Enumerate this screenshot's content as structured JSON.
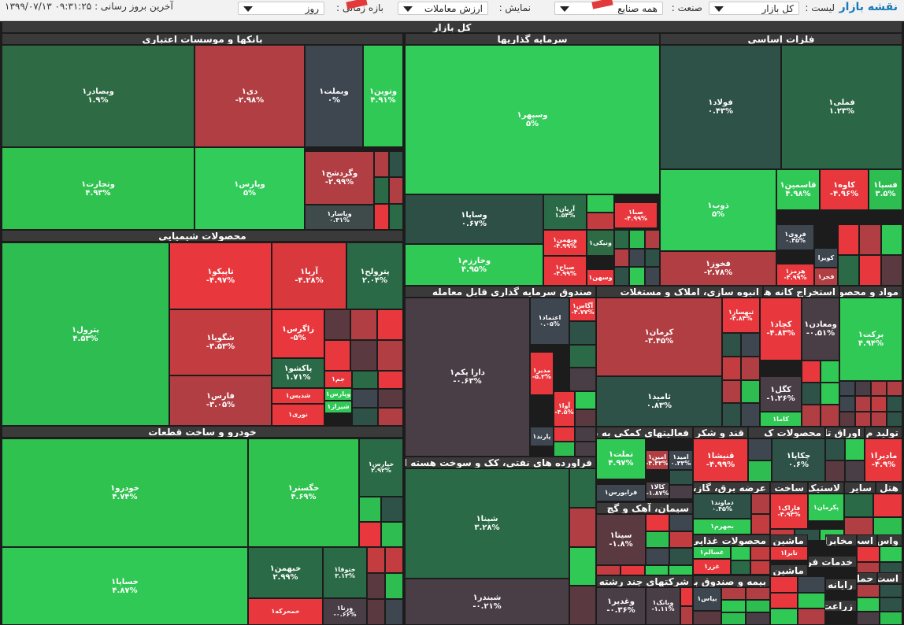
{
  "top_bar": {
    "app_title": "نقشه بازار",
    "list_label": "لیست :",
    "list_value": "کل بازار",
    "industry_label": "صنعت :",
    "industry_value": "همه صنایع",
    "show_label": "نمایش :",
    "show_value": "ارزش معاملات",
    "period_label": "بازه زمانی :",
    "period_value": "روز",
    "update_label": "آخرین بروز رسانی : ۰۹:۳۱:۲۵ ۱۳۹۹/۰۷/۱۳"
  },
  "map": {
    "root": "کل بازار",
    "sectors": [
      {
        "id": "banks",
        "name": "بانکها و موسسات اعتباری"
      },
      {
        "id": "invest",
        "name": "سرمایه گذاریها"
      },
      {
        "id": "metals",
        "name": "فلزات اساسی"
      },
      {
        "id": "chem",
        "name": "محصولات شیمیایی"
      },
      {
        "id": "fund",
        "name": "صندوق سرمایه گذاری قابل معامله"
      },
      {
        "id": "build",
        "name": "انبوه سازی، املاک و مستغلات"
      },
      {
        "id": "mining",
        "name": "استخراج کانه های"
      },
      {
        "id": "mat",
        "name": "مواد و محصو"
      },
      {
        "id": "auto",
        "name": "خودرو و ساخت قطعات"
      },
      {
        "id": "aux",
        "name": "فعالیتهای کمکی به نهاد"
      },
      {
        "id": "sugar",
        "name": "قند و شکر"
      },
      {
        "id": "prodk",
        "name": "محصولات ک"
      },
      {
        "id": "paper",
        "name": "اوراق تا"
      },
      {
        "id": "tolid",
        "name": "تولید م"
      },
      {
        "id": "oil",
        "name": "فراورده های نفتی، کک و سوخت هسته ای"
      },
      {
        "id": "utility",
        "name": "عرضه برق، گاز، بخ"
      },
      {
        "id": "sakhtm",
        "name": "ساخت م"
      },
      {
        "id": "lastik",
        "name": "لاستیک"
      },
      {
        "id": "sayer",
        "name": "سایر"
      },
      {
        "id": "hotel",
        "name": "هتل"
      },
      {
        "id": "cement",
        "name": "سیمان، آهک و گچ"
      },
      {
        "id": "food",
        "name": "محصولات غذایی و"
      },
      {
        "id": "mashin",
        "name": "ماشین آ"
      },
      {
        "id": "mokh",
        "name": "مخابرات"
      },
      {
        "id": "ast",
        "name": "است"
      },
      {
        "id": "vas",
        "name": "واس"
      },
      {
        "id": "khad",
        "name": "خدمات فن"
      },
      {
        "id": "rayane",
        "name": "رایانه و ف"
      },
      {
        "id": "haml",
        "name": "حمل"
      },
      {
        "id": "astl",
        "name": "است"
      },
      {
        "id": "multi",
        "name": "شرکتهای چند رشته ای"
      },
      {
        "id": "bime",
        "name": "بیمه و صندوق بازن"
      },
      {
        "id": "zeraat",
        "name": "زراعت و"
      }
    ],
    "tiles": [
      {
        "id": "vbsadr",
        "sym": "وبصادر۱",
        "chg": "۱.۹%",
        "color": "#2e6b45"
      },
      {
        "id": "di",
        "sym": "دی۱",
        "chg": "-۲.۹۸%",
        "color": "#b13e43"
      },
      {
        "id": "vbmellat",
        "sym": "وبملت۱",
        "chg": "۰%",
        "color": "#3e4650"
      },
      {
        "id": "vtoveen",
        "sym": "وتوین۱",
        "chg": "۴.۹۱%",
        "color": "#31c956"
      },
      {
        "id": "vtejarat",
        "sym": "وتجارت۱",
        "chg": "۴.۹۳%",
        "color": "#2fc24f"
      },
      {
        "id": "vpars",
        "sym": "وپارس۱",
        "chg": "۵%",
        "color": "#31cc59"
      },
      {
        "id": "vgardesh",
        "sym": "وگردشح۱",
        "chg": "-۲.۹۹%",
        "color": "#b13e43"
      },
      {
        "id": "vpasar",
        "sym": "وپاسار۱",
        "chg": "۰.۳۱%",
        "color": "#3e4b4a"
      },
      {
        "id": "vsepehr",
        "sym": "وسپهر۱",
        "chg": "۵%",
        "color": "#31cc59"
      },
      {
        "id": "foolad",
        "sym": "فولاد۱",
        "chg": "۰.۴۳%",
        "color": "#2e5247"
      },
      {
        "id": "fameli",
        "sym": "فملی۱",
        "chg": "۱.۲۳%",
        "color": "#2b6747"
      },
      {
        "id": "vsapa",
        "sym": "وساپا۱",
        "chg": "۰.۶۷%",
        "color": "#2e4f45"
      },
      {
        "id": "aryan",
        "sym": "آریان۱",
        "chg": "۱.۵۴%",
        "color": "#2a6a46"
      },
      {
        "id": "saba",
        "sym": "صبا۱",
        "chg": "-۴.۹۹%",
        "color": "#e8383d"
      },
      {
        "id": "zob",
        "sym": "ذوب۱",
        "chg": "۵%",
        "color": "#31cc59"
      },
      {
        "id": "ghasemin",
        "sym": "قاسمین۱",
        "chg": "۴.۹۸%",
        "color": "#31c956"
      },
      {
        "id": "kave",
        "sym": "کاوه۱",
        "chg": "-۴.۹۶%",
        "color": "#e8383d"
      },
      {
        "id": "fasa",
        "sym": "فسپا۱",
        "chg": "۳.۵%",
        "color": "#2dbd51"
      },
      {
        "id": "vbahman",
        "sym": "وبهمن۱",
        "chg": "-۴.۹۹%",
        "color": "#e8383d"
      },
      {
        "id": "vnika",
        "sym": "ونیکی۱",
        "chg": "",
        "color": "#2e6b45"
      },
      {
        "id": "sabah",
        "sym": "صباح۱",
        "chg": "-۴.۹۹%",
        "color": "#e8383d"
      },
      {
        "id": "vsahand",
        "sym": "وسهن۱",
        "chg": "",
        "color": "#e8383d"
      },
      {
        "id": "vkharazm",
        "sym": "وخارزم۱",
        "chg": "۴.۹۵%",
        "color": "#31c956"
      },
      {
        "id": "farvi",
        "sym": "فروی۱",
        "chg": "۰.۴۵%",
        "color": "#3e4650"
      },
      {
        "id": "kvira",
        "sym": "کویرا",
        "chg": "",
        "color": "#3e4650"
      },
      {
        "id": "fakhooz",
        "sym": "فخوز۱",
        "chg": "-۲.۷۸%",
        "color": "#b13e43"
      },
      {
        "id": "hormoz",
        "sym": "هرمز۱",
        "chg": "-۴.۹۹%",
        "color": "#e8383d"
      },
      {
        "id": "fajr",
        "sym": "فجر۱",
        "chg": "",
        "color": "#b13e43"
      },
      {
        "id": "petrol",
        "sym": "پترول۱",
        "chg": "۴.۵۳%",
        "color": "#2dbd51"
      },
      {
        "id": "tapiko",
        "sym": "تاپیکو۱",
        "chg": "-۴.۹۷%",
        "color": "#e8383d"
      },
      {
        "id": "arya",
        "sym": "آریا۱",
        "chg": "-۴.۲۸%",
        "color": "#d9383c"
      },
      {
        "id": "pertroleh",
        "sym": "پترولح۱",
        "chg": "۲.۰۴%",
        "color": "#2a6a46"
      },
      {
        "id": "shgoya",
        "sym": "شگویا۱",
        "chg": "-۳.۵۳%",
        "color": "#c23c40"
      },
      {
        "id": "zagros",
        "sym": "زاگرس۱",
        "chg": "-۵%",
        "color": "#e8383d"
      },
      {
        "id": "pakshoo",
        "sym": "پاکشو۱",
        "chg": "۱.۷۱%",
        "color": "#2a6a46"
      },
      {
        "id": "jam",
        "sym": "جم۱",
        "chg": "",
        "color": "#e8383d"
      },
      {
        "id": "vpars2",
        "sym": "وپارس۱",
        "chg": "",
        "color": "#31c956"
      },
      {
        "id": "shdis",
        "sym": "شدیس۱",
        "chg": "",
        "color": "#e8383d"
      },
      {
        "id": "shiraz",
        "sym": "شیراز۱",
        "chg": "",
        "color": "#31c956"
      },
      {
        "id": "fars",
        "sym": "فارس۱",
        "chg": "-۳.۰۵%",
        "color": "#b13e43"
      },
      {
        "id": "noori",
        "sym": "نوری۱",
        "chg": "",
        "color": "#e8383d"
      },
      {
        "id": "daraykom",
        "sym": "دارا یکم۱",
        "chg": "-۰.۶۳%",
        "color": "#4a3e46"
      },
      {
        "id": "etemad",
        "sym": "اعتماد۱",
        "chg": "۰.۰۵%",
        "color": "#3e4650"
      },
      {
        "id": "aga",
        "sym": "آگاس۱",
        "chg": "-۴.۷۷%",
        "color": "#e8383d"
      },
      {
        "id": "modir",
        "sym": "مدیر۱",
        "chg": "-۵.۲%",
        "color": "#e8383d"
      },
      {
        "id": "ava",
        "sym": "آوا۱",
        "chg": "-۴.۵%",
        "color": "#e8383d"
      },
      {
        "id": "parand",
        "sym": "پارند۱",
        "chg": "",
        "color": "#3e4650"
      },
      {
        "id": "kerman",
        "sym": "کرمان۱",
        "chg": "-۳.۴۵%",
        "color": "#b13e43"
      },
      {
        "id": "tamid",
        "sym": "ثامید۱",
        "chg": "۰.۸۳%",
        "color": "#2e5247"
      },
      {
        "id": "thbsaz",
        "sym": "ثبهساز۱",
        "chg": "-۴.۸۴%",
        "color": "#e8383d"
      },
      {
        "id": "kechad",
        "sym": "کچاد۱",
        "chg": "-۴.۸۳%",
        "color": "#e8383d"
      },
      {
        "id": "vmaaden",
        "sym": "ومعادن۱",
        "chg": "-۰.۵۱%",
        "color": "#4a3e46"
      },
      {
        "id": "barkat",
        "sym": "برکت۱",
        "chg": "۴.۹۴%",
        "color": "#31c956"
      },
      {
        "id": "kegol",
        "sym": "کگل۱",
        "chg": "-۱.۲۶%",
        "color": "#4a3e46"
      },
      {
        "id": "kama",
        "sym": "کاما۱",
        "chg": "",
        "color": "#31c956"
      },
      {
        "id": "khodro",
        "sym": "خودرو۱",
        "chg": "۴.۷۴%",
        "color": "#2fc24f"
      },
      {
        "id": "khgostar",
        "sym": "خگستر۱",
        "chg": "۴.۶۹%",
        "color": "#2fc24f"
      },
      {
        "id": "khepars",
        "sym": "خپارس۱",
        "chg": "۲.۹۲%",
        "color": "#2a6a46"
      },
      {
        "id": "khsapa",
        "sym": "خساپا۱",
        "chg": "۴.۸۷%",
        "color": "#31c956"
      },
      {
        "id": "khbahman",
        "sym": "خبهمن۱",
        "chg": "۲.۹۹%",
        "color": "#2a6a46"
      },
      {
        "id": "khtoga",
        "sym": "ختوقا۱",
        "chg": "۳.۱۳%",
        "color": "#2a6a46"
      },
      {
        "id": "khamrakhe",
        "sym": "خمحرکه۱",
        "chg": "",
        "color": "#e8383d"
      },
      {
        "id": "vrena",
        "sym": "ورنا۱",
        "chg": "-۰.۶۶%",
        "color": "#4a3e46"
      },
      {
        "id": "tamelat",
        "sym": "تملت۱",
        "chg": "۴.۹۷%",
        "color": "#31c956"
      },
      {
        "id": "amin",
        "sym": "امین۱",
        "chg": "-۴.۴۳%",
        "color": "#b13e43"
      },
      {
        "id": "amid",
        "sym": "امید۱",
        "chg": "۰.۳۳%",
        "color": "#3e4650"
      },
      {
        "id": "kala",
        "sym": "کالا۱",
        "chg": "-۱.۸۷%",
        "color": "#4a3e46"
      },
      {
        "id": "farabors",
        "sym": "فرابورس۱",
        "chg": "",
        "color": "#3e4650"
      },
      {
        "id": "ghanisha",
        "sym": "قنیشا۱",
        "chg": "-۴.۹۹%",
        "color": "#e8383d"
      },
      {
        "id": "chekapa",
        "sym": "چکاپا۱",
        "chg": "۰.۶%",
        "color": "#2e5247"
      },
      {
        "id": "madira",
        "sym": "مادیرا۱",
        "chg": "-۴.۹%",
        "color": "#e8383d"
      },
      {
        "id": "shapna",
        "sym": "شپنا۱",
        "chg": "۳.۲۸%",
        "color": "#2a6a46"
      },
      {
        "id": "shbandar",
        "sym": "شبندر۱",
        "chg": "-۰.۲۱%",
        "color": "#4a3e46"
      },
      {
        "id": "damavand",
        "sym": "دماوند۱",
        "chg": "۰.۴۵%",
        "color": "#2e5247"
      },
      {
        "id": "bjahrom",
        "sym": "بجهرم۱",
        "chg": "",
        "color": "#31c956"
      },
      {
        "id": "faraak",
        "sym": "فاراک۱",
        "chg": "-۴.۹۴%",
        "color": "#e8383d"
      },
      {
        "id": "pkerman",
        "sym": "پکرمان۱",
        "chg": "",
        "color": "#31c956"
      },
      {
        "id": "sita",
        "sym": "سیتا۱",
        "chg": "-۱.۸%",
        "color": "#5a3a40"
      },
      {
        "id": "ghsalem",
        "sym": "غسالم۱",
        "chg": "",
        "color": "#31c956"
      },
      {
        "id": "taira",
        "sym": "تایرا۱",
        "chg": "",
        "color": "#e8383d"
      },
      {
        "id": "ghzar",
        "sym": "غزر۱",
        "chg": "",
        "color": "#e8383d"
      },
      {
        "id": "vghadir",
        "sym": "وغدیر۱",
        "chg": "-۰.۳۶%",
        "color": "#4a3e46"
      },
      {
        "id": "vbank",
        "sym": "وبانک۱",
        "chg": "-۱.۱۱%",
        "color": "#4a3e46"
      },
      {
        "id": "bpas",
        "sym": "بپاس۱",
        "chg": "",
        "color": "#3e4650"
      }
    ]
  }
}
